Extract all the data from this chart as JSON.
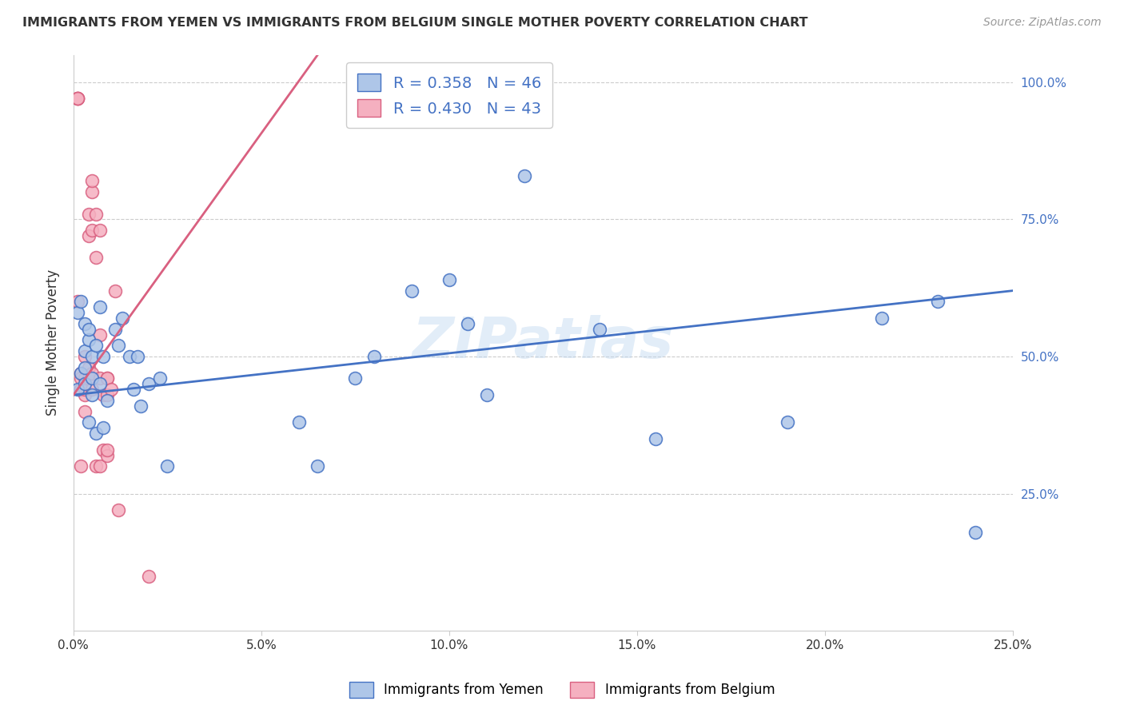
{
  "title": "IMMIGRANTS FROM YEMEN VS IMMIGRANTS FROM BELGIUM SINGLE MOTHER POVERTY CORRELATION CHART",
  "source": "Source: ZipAtlas.com",
  "ylabel": "Single Mother Poverty",
  "watermark": "ZIPatlas",
  "legend_blue_R": "0.358",
  "legend_blue_N": "46",
  "legend_pink_R": "0.430",
  "legend_pink_N": "43",
  "blue_scatter_color": "#aec6e8",
  "pink_scatter_color": "#f5b0c0",
  "blue_edge_color": "#4472c4",
  "pink_edge_color": "#d96080",
  "blue_line_color": "#4472c4",
  "pink_line_color": "#d96080",
  "legend_label_blue": "Immigrants from Yemen",
  "legend_label_pink": "Immigrants from Belgium",
  "xlim": [
    0.0,
    0.25
  ],
  "ylim": [
    0.0,
    1.05
  ],
  "grid_color": "#cccccc",
  "text_color": "#333333",
  "right_axis_color": "#4472c4",
  "yemen_x": [
    0.001,
    0.001,
    0.002,
    0.002,
    0.003,
    0.003,
    0.003,
    0.003,
    0.004,
    0.004,
    0.004,
    0.005,
    0.005,
    0.005,
    0.006,
    0.006,
    0.007,
    0.007,
    0.008,
    0.008,
    0.009,
    0.011,
    0.012,
    0.013,
    0.015,
    0.016,
    0.017,
    0.018,
    0.02,
    0.023,
    0.025,
    0.06,
    0.065,
    0.075,
    0.08,
    0.09,
    0.1,
    0.105,
    0.11,
    0.12,
    0.14,
    0.155,
    0.19,
    0.215,
    0.23,
    0.24
  ],
  "yemen_y": [
    0.44,
    0.58,
    0.47,
    0.6,
    0.45,
    0.48,
    0.51,
    0.56,
    0.38,
    0.53,
    0.55,
    0.43,
    0.46,
    0.5,
    0.36,
    0.52,
    0.45,
    0.59,
    0.37,
    0.5,
    0.42,
    0.55,
    0.52,
    0.57,
    0.5,
    0.44,
    0.5,
    0.41,
    0.45,
    0.46,
    0.3,
    0.38,
    0.3,
    0.46,
    0.5,
    0.62,
    0.64,
    0.56,
    0.43,
    0.83,
    0.55,
    0.35,
    0.38,
    0.57,
    0.6,
    0.18
  ],
  "belgium_x": [
    0.001,
    0.001,
    0.001,
    0.001,
    0.001,
    0.002,
    0.002,
    0.002,
    0.002,
    0.002,
    0.002,
    0.003,
    0.003,
    0.003,
    0.003,
    0.003,
    0.004,
    0.004,
    0.004,
    0.004,
    0.005,
    0.005,
    0.005,
    0.005,
    0.005,
    0.006,
    0.006,
    0.006,
    0.007,
    0.007,
    0.007,
    0.007,
    0.008,
    0.008,
    0.009,
    0.009,
    0.009,
    0.009,
    0.009,
    0.01,
    0.011,
    0.012,
    0.02
  ],
  "belgium_y": [
    0.97,
    0.97,
    0.97,
    0.97,
    0.6,
    0.44,
    0.44,
    0.47,
    0.3,
    0.44,
    0.46,
    0.4,
    0.43,
    0.44,
    0.46,
    0.5,
    0.46,
    0.48,
    0.72,
    0.76,
    0.73,
    0.8,
    0.82,
    0.44,
    0.47,
    0.76,
    0.68,
    0.3,
    0.73,
    0.3,
    0.46,
    0.54,
    0.33,
    0.43,
    0.32,
    0.33,
    0.43,
    0.46,
    0.46,
    0.44,
    0.62,
    0.22,
    0.1
  ]
}
